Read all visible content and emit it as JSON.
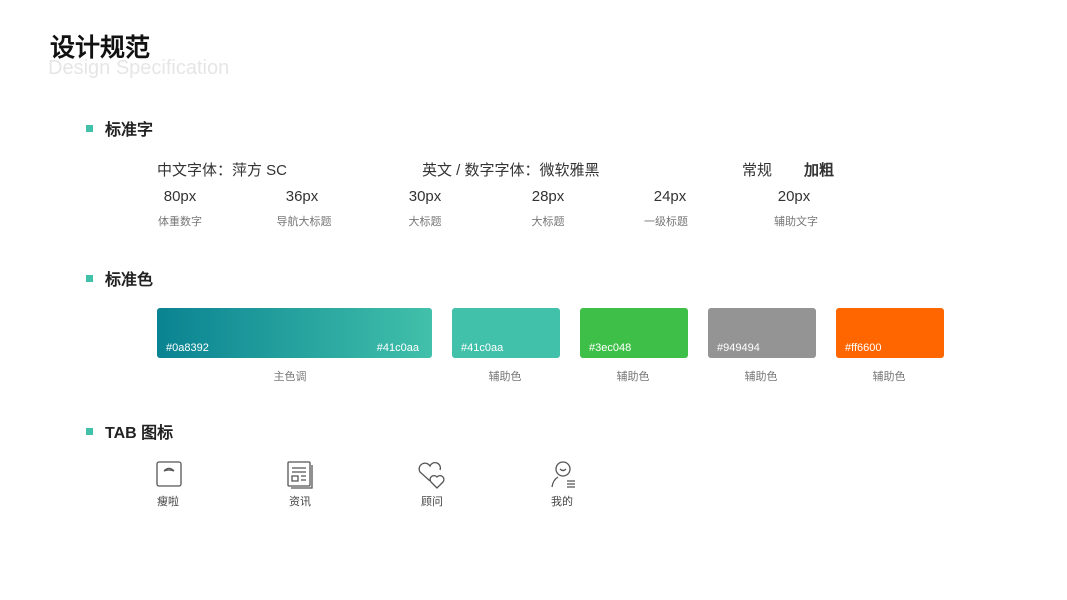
{
  "header": {
    "title": "设计规范",
    "subtitle": "Design Specification"
  },
  "sections": {
    "fonts": "标准字",
    "colors": "标准色",
    "tabs": "TAB 图标"
  },
  "fonts": {
    "chinese": "中文字体：萍方 SC",
    "english": "英文 / 数字字体：微软雅黑",
    "regular": "常规",
    "bold": "加粗",
    "sizes": [
      {
        "size": "80px",
        "label": "体重数字"
      },
      {
        "size": "36px",
        "label": "导航大标题"
      },
      {
        "size": "30px",
        "label": "大标题"
      },
      {
        "size": "28px",
        "label": "大标题"
      },
      {
        "size": "24px",
        "label": "一级标题"
      },
      {
        "size": "20px",
        "label": "辅助文字"
      }
    ]
  },
  "colors": {
    "primary": {
      "from": "#0a8392",
      "to": "#41c0aa",
      "label": "主色调"
    },
    "aux": [
      {
        "hex": "#41c0aa",
        "label": "辅助色"
      },
      {
        "hex": "#3ec048",
        "label": "辅助色"
      },
      {
        "hex": "#949494",
        "label": "辅助色"
      },
      {
        "hex": "#ff6600",
        "label": "辅助色"
      }
    ]
  },
  "tabs": [
    {
      "icon": "scale-icon",
      "label": "瘦啦"
    },
    {
      "icon": "news-icon",
      "label": "资讯"
    },
    {
      "icon": "hearts-icon",
      "label": "顾问"
    },
    {
      "icon": "user-icon",
      "label": "我的"
    }
  ]
}
